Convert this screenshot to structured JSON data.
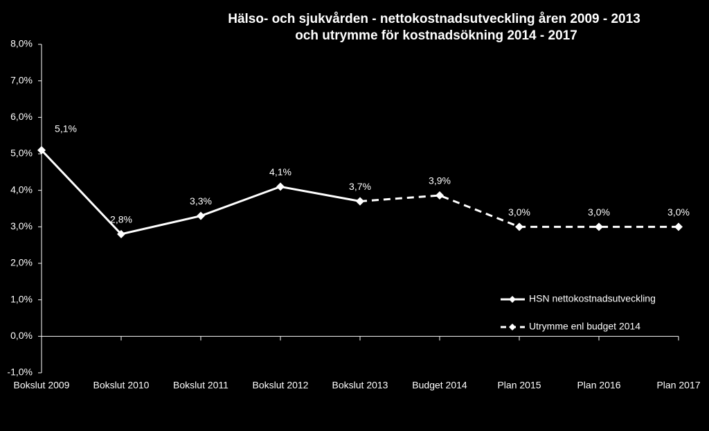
{
  "chart_data": {
    "type": "line",
    "title": [
      "Hälso- och sjukvården - nettokostnadsutveckling  åren 2009 - 2013",
      "och utrymme för kostnadsökning 2014 - 2017"
    ],
    "categories": [
      "Bokslut 2009",
      "Bokslut 2010",
      "Bokslut 2011",
      "Bokslut 2012",
      "Bokslut 2013",
      "Budget 2014",
      "Plan 2015",
      "Plan 2016",
      "Plan 2017"
    ],
    "series": [
      {
        "name": "HSN nettokostnadsutveckling",
        "color": "#ffffff",
        "dashed": false,
        "values": [
          5.1,
          2.8,
          3.3,
          4.1,
          3.7,
          null,
          null,
          null,
          null
        ],
        "value_labels": [
          "5,1%",
          "2,8%",
          "3,3%",
          "4,1%",
          "3,7%",
          null,
          null,
          null,
          null
        ]
      },
      {
        "name": "Utrymme enl budget 2014",
        "color": "#ffffff",
        "dashed": true,
        "values": [
          null,
          null,
          null,
          null,
          3.7,
          3.86,
          3.0,
          3.0,
          3.0
        ],
        "value_labels": [
          null,
          null,
          null,
          null,
          null,
          "3,9%",
          "3,0%",
          "3,0%",
          "3,0%"
        ]
      }
    ],
    "ylim": [
      -1,
      8
    ],
    "yticks": [
      {
        "value": -1,
        "label": "-1,0%"
      },
      {
        "value": 0,
        "label": "0,0%"
      },
      {
        "value": 1,
        "label": "1,0%"
      },
      {
        "value": 2,
        "label": "2,0%"
      },
      {
        "value": 3,
        "label": "3,0%"
      },
      {
        "value": 4,
        "label": "4,0%"
      },
      {
        "value": 5,
        "label": "5,0%"
      },
      {
        "value": 6,
        "label": "6,0%"
      },
      {
        "value": 7,
        "label": "7,0%"
      },
      {
        "value": 8,
        "label": "8,0%"
      }
    ]
  }
}
